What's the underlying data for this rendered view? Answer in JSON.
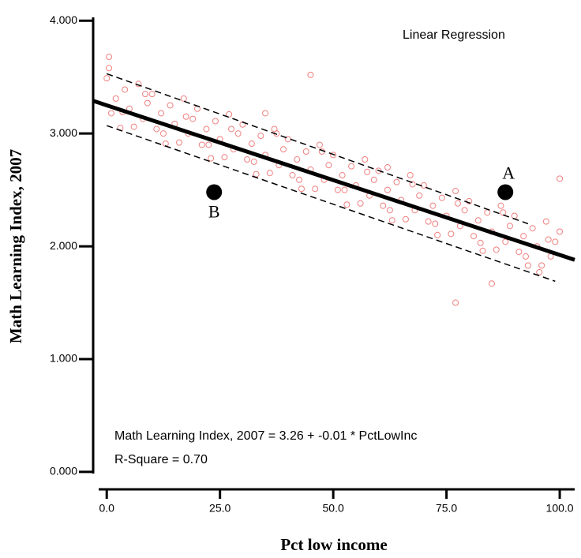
{
  "chart_data": {
    "type": "scatter",
    "x_label": "Pct low income",
    "y_label": "Math Learning Index, 2007",
    "annotations": [
      "Linear Regression",
      "Math Learning Index, 2007 = 3.26 + -0.01 * PctLowInc",
      "R-Square = 0.70"
    ],
    "xlim": [
      -3,
      103.3
    ],
    "ylim": [
      -0.015,
      4.03
    ],
    "xticks": [
      {
        "value": 0,
        "label": "0.0"
      },
      {
        "value": 25,
        "label": "25.0"
      },
      {
        "value": 50,
        "label": "50.0"
      },
      {
        "value": 75,
        "label": "75.0"
      },
      {
        "value": 100,
        "label": "100.0"
      }
    ],
    "yticks": [
      {
        "value": 0,
        "label": "0.000"
      },
      {
        "value": 1,
        "label": "1.000"
      },
      {
        "value": 2,
        "label": "2.000"
      },
      {
        "value": 3,
        "label": "3.000"
      },
      {
        "value": 4,
        "label": "4.000"
      }
    ],
    "color": "#f08080",
    "x": [
      0,
      1,
      2,
      3,
      4,
      5,
      6,
      7,
      8,
      9,
      10,
      11,
      12,
      13,
      14,
      15,
      16,
      17,
      18,
      19,
      20,
      21,
      22,
      23,
      24,
      25,
      26,
      27,
      28,
      29,
      30,
      31,
      32,
      33,
      34,
      35,
      36,
      37,
      38,
      39,
      40,
      41,
      42,
      43,
      44,
      45,
      46,
      47,
      48,
      49,
      50,
      51,
      52,
      53,
      54,
      55,
      56,
      57,
      58,
      59,
      60,
      61,
      62,
      63,
      64,
      65,
      66,
      67,
      68,
      69,
      70,
      71,
      72,
      73,
      74,
      75,
      76,
      77,
      78,
      79,
      80,
      81,
      82,
      83,
      84,
      85,
      86,
      87,
      88,
      89,
      90,
      91,
      92,
      93,
      94,
      95,
      96,
      97,
      98,
      99,
      100,
      0.5,
      3.5,
      8.5,
      12.5,
      17.5,
      22.5,
      27.5,
      32.5,
      37.5,
      42.5,
      47.5,
      52.5,
      57.5,
      62.5,
      67.5,
      72.5,
      77.5,
      82.5,
      87.5,
      92.5,
      97.5,
      45,
      77,
      85,
      95.5,
      100,
      0.5,
      62,
      35
    ],
    "y": [
      3.49,
      3.18,
      3.31,
      3.05,
      3.39,
      3.22,
      3.06,
      3.44,
      3.13,
      3.27,
      3.35,
      3.04,
      3.18,
      2.91,
      3.25,
      3.086,
      2.92,
      3.31,
      3.0,
      3.13,
      3.22,
      2.9,
      3.04,
      2.78,
      3.11,
      2.95,
      2.79,
      3.17,
      2.86,
      3.0,
      3.08,
      2.77,
      2.91,
      2.64,
      2.98,
      2.81,
      2.65,
      3.04,
      2.72,
      2.86,
      2.95,
      2.63,
      2.77,
      2.51,
      2.84,
      2.68,
      2.51,
      2.9,
      2.59,
      2.72,
      2.81,
      2.5,
      2.63,
      2.37,
      2.71,
      2.54,
      2.38,
      2.77,
      2.45,
      2.59,
      2.67,
      2.36,
      2.5,
      2.23,
      2.57,
      2.41,
      2.24,
      2.63,
      2.32,
      2.45,
      2.54,
      2.22,
      2.36,
      2.1,
      2.43,
      2.27,
      2.11,
      2.49,
      2.18,
      2.32,
      2.4,
      2.09,
      2.23,
      1.96,
      2.3,
      2.13,
      1.97,
      2.36,
      2.04,
      2.18,
      2.27,
      1.95,
      2.09,
      1.83,
      2.16,
      2.0,
      1.83,
      2.22,
      1.91,
      2.04,
      2.13,
      3.58,
      3.19,
      3.35,
      3.0,
      3.15,
      2.9,
      3.04,
      2.75,
      3.0,
      2.59,
      2.84,
      2.5,
      2.66,
      2.32,
      2.55,
      2.2,
      2.38,
      2.03,
      2.3,
      1.91,
      2.06,
      3.52,
      1.5,
      1.67,
      1.77,
      2.6,
      3.68,
      2.7,
      3.18
    ],
    "fit_line": {
      "x": [
        -3,
        103.3
      ],
      "y": [
        3.29,
        1.88
      ]
    },
    "interval_upper": {
      "x": [
        0,
        93
      ],
      "y": [
        3.53,
        2.2
      ]
    },
    "interval_lower": {
      "x": [
        0,
        99
      ],
      "y": [
        3.07,
        1.69
      ]
    },
    "highlighted_points": [
      {
        "label": "A",
        "x": 88,
        "y": 2.48
      },
      {
        "label": "B",
        "x": 23.7,
        "y": 2.48
      }
    ]
  }
}
